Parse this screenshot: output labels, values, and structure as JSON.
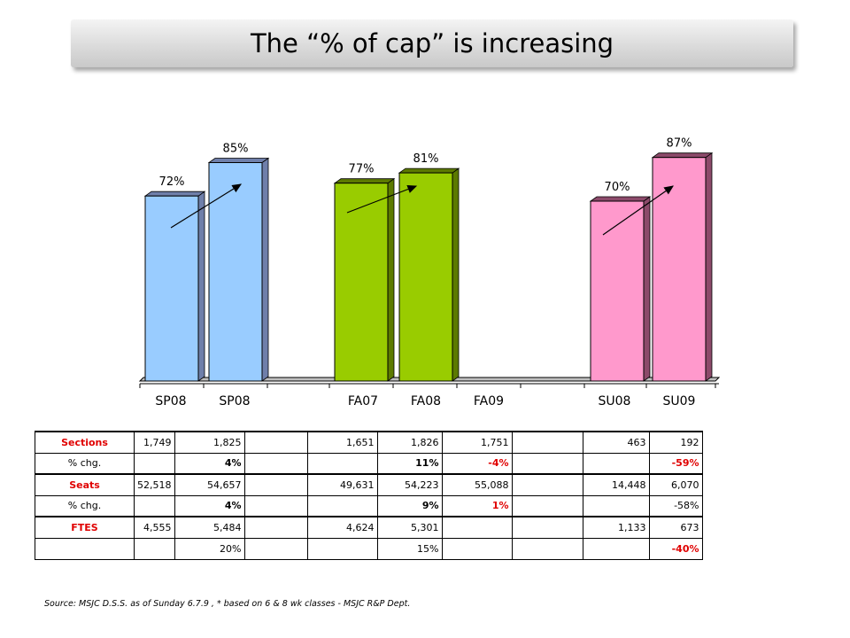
{
  "title": "The “% of cap” is increasing",
  "chart_data": {
    "type": "bar",
    "categories": [
      "SP08",
      "SP08",
      "FA07",
      "FA08",
      "FA09",
      "SU08",
      "SU09"
    ],
    "values": [
      72,
      85,
      77,
      81,
      null,
      70,
      87
    ],
    "value_labels": [
      "72%",
      "85%",
      "77%",
      "81%",
      "",
      "70%",
      "87%"
    ],
    "colors": {
      "spring": "#99ccff",
      "fall": "#99cc00",
      "summer": "#ff99cc"
    },
    "trend_arrows": true,
    "grid": false,
    "legend": "none"
  },
  "table": {
    "rows": [
      {
        "label": "Sections",
        "label_style": "red",
        "cells": [
          "1,749",
          "1,825",
          "",
          "1,651",
          "1,826",
          "1,751",
          "",
          "463",
          "192"
        ],
        "styles": [
          "",
          "",
          "",
          "",
          "",
          "",
          "",
          "",
          ""
        ]
      },
      {
        "label": "% chg.",
        "label_style": "",
        "cells": [
          "",
          "4%",
          "",
          "",
          "11%",
          "-4%",
          "",
          "",
          "-59%"
        ],
        "styles": [
          "",
          "bold",
          "",
          "",
          "bold",
          "red",
          "",
          "",
          "red"
        ]
      },
      {
        "label": "Seats",
        "label_style": "red",
        "cells": [
          "52,518",
          "54,657",
          "",
          "49,631",
          "54,223",
          "55,088",
          "",
          "14,448",
          "6,070"
        ],
        "styles": [
          "",
          "",
          "",
          "",
          "",
          "",
          "",
          "",
          ""
        ]
      },
      {
        "label": "% chg.",
        "label_style": "",
        "cells": [
          "",
          "4%",
          "",
          "",
          "9%",
          "1%",
          "",
          "",
          "-58%"
        ],
        "styles": [
          "",
          "bold",
          "",
          "",
          "bold",
          "red",
          "",
          "",
          ""
        ]
      },
      {
        "label": "FTES",
        "label_style": "red",
        "cells": [
          "4,555",
          "5,484",
          "",
          "4,624",
          "5,301",
          "",
          "",
          "1,133",
          "673"
        ],
        "styles": [
          "",
          "",
          "",
          "",
          "",
          "",
          "",
          "",
          ""
        ]
      },
      {
        "label": "",
        "label_style": "",
        "cells": [
          "",
          "20%",
          "",
          "",
          "15%",
          "",
          "",
          "",
          "-40%"
        ],
        "styles": [
          "",
          "",
          "",
          "",
          "",
          "",
          "",
          "",
          "red"
        ]
      }
    ]
  },
  "source": "Source: MSJC D.S.S. as of Sunday 6.7.9 , * based on 6 & 8 wk classes  -  MSJC R&P Dept."
}
